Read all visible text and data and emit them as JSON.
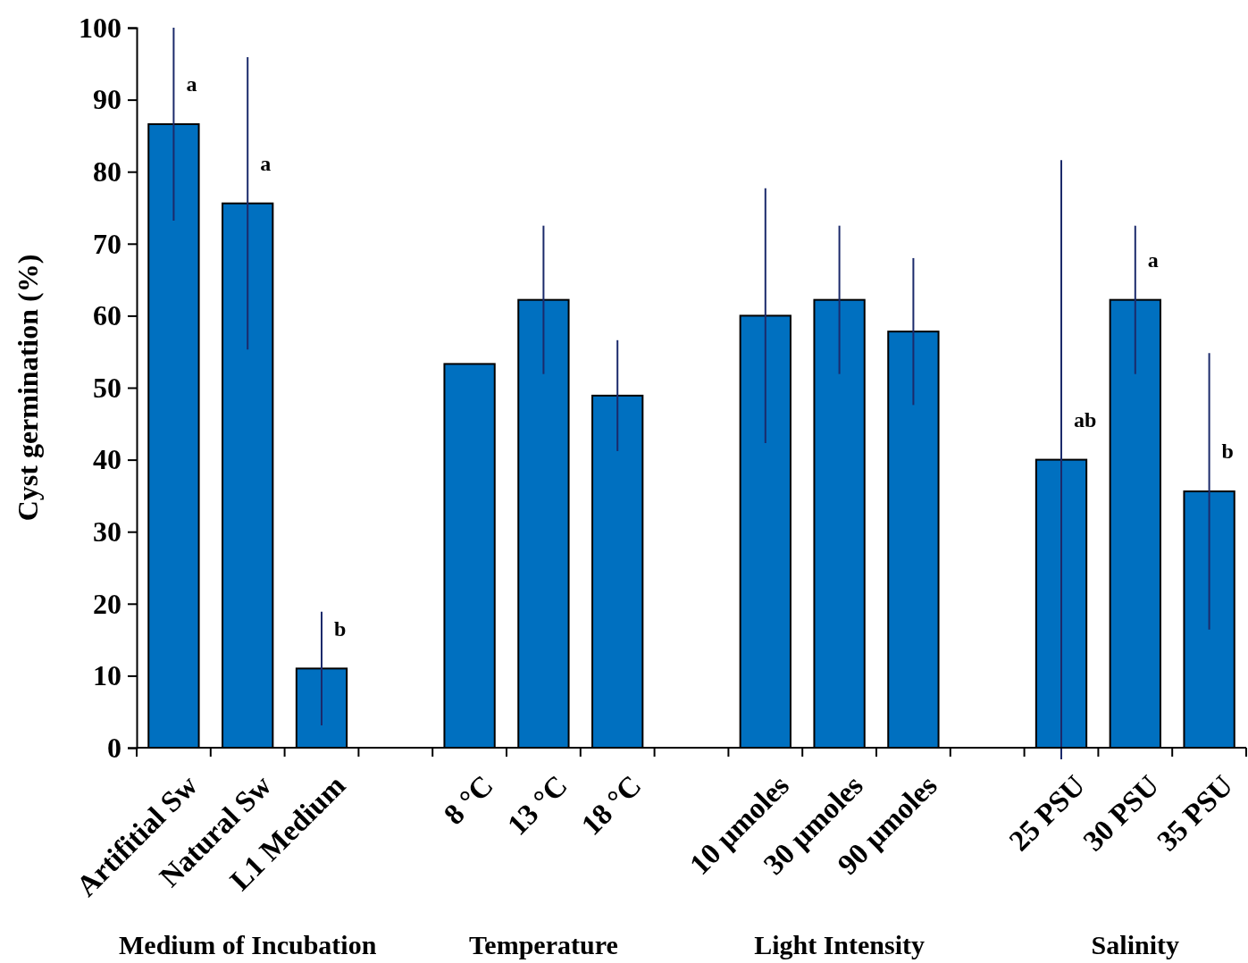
{
  "chart_data": {
    "type": "bar",
    "ylabel": "Cyst germination (%)",
    "categories": [
      "Artifitial Sw",
      "Natural Sw",
      "L1 Medium",
      null,
      "8 °C",
      "13 °C",
      "18 °C",
      null,
      "10 µmoles",
      "30 µmoles",
      "90 µmoles",
      null,
      "25 PSU",
      "30 PSU",
      "35 PSU"
    ],
    "values": [
      86.6,
      75.6,
      11.0,
      null,
      53.3,
      62.2,
      48.9,
      null,
      60.0,
      62.2,
      57.8,
      null,
      40.0,
      62.2,
      35.6
    ],
    "errors": [
      13.4,
      20.3,
      7.9,
      null,
      null,
      10.3,
      7.7,
      null,
      17.7,
      10.3,
      10.2,
      null,
      41.6,
      10.3,
      19.2
    ],
    "color": "#0070c0",
    "ylim": [
      0,
      100
    ],
    "yticks": [
      0,
      10,
      20,
      30,
      40,
      50,
      60,
      70,
      80,
      90,
      100
    ],
    "grid": false,
    "value_labels": [
      "a",
      "a",
      "b",
      null,
      null,
      null,
      null,
      null,
      null,
      null,
      null,
      null,
      "ab",
      "a",
      "b"
    ],
    "annotations": [
      "Medium of Incubation",
      "Temperature",
      "Light Intensity",
      "Salinity"
    ]
  }
}
